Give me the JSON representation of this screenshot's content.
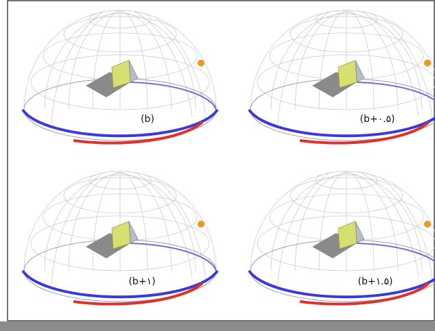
{
  "panels": [
    {
      "label": "(b)"
    },
    {
      "label": "(b+۰.۵)"
    },
    {
      "label": "(b+۱)"
    },
    {
      "label": "(b+۱.۵)"
    }
  ]
}
